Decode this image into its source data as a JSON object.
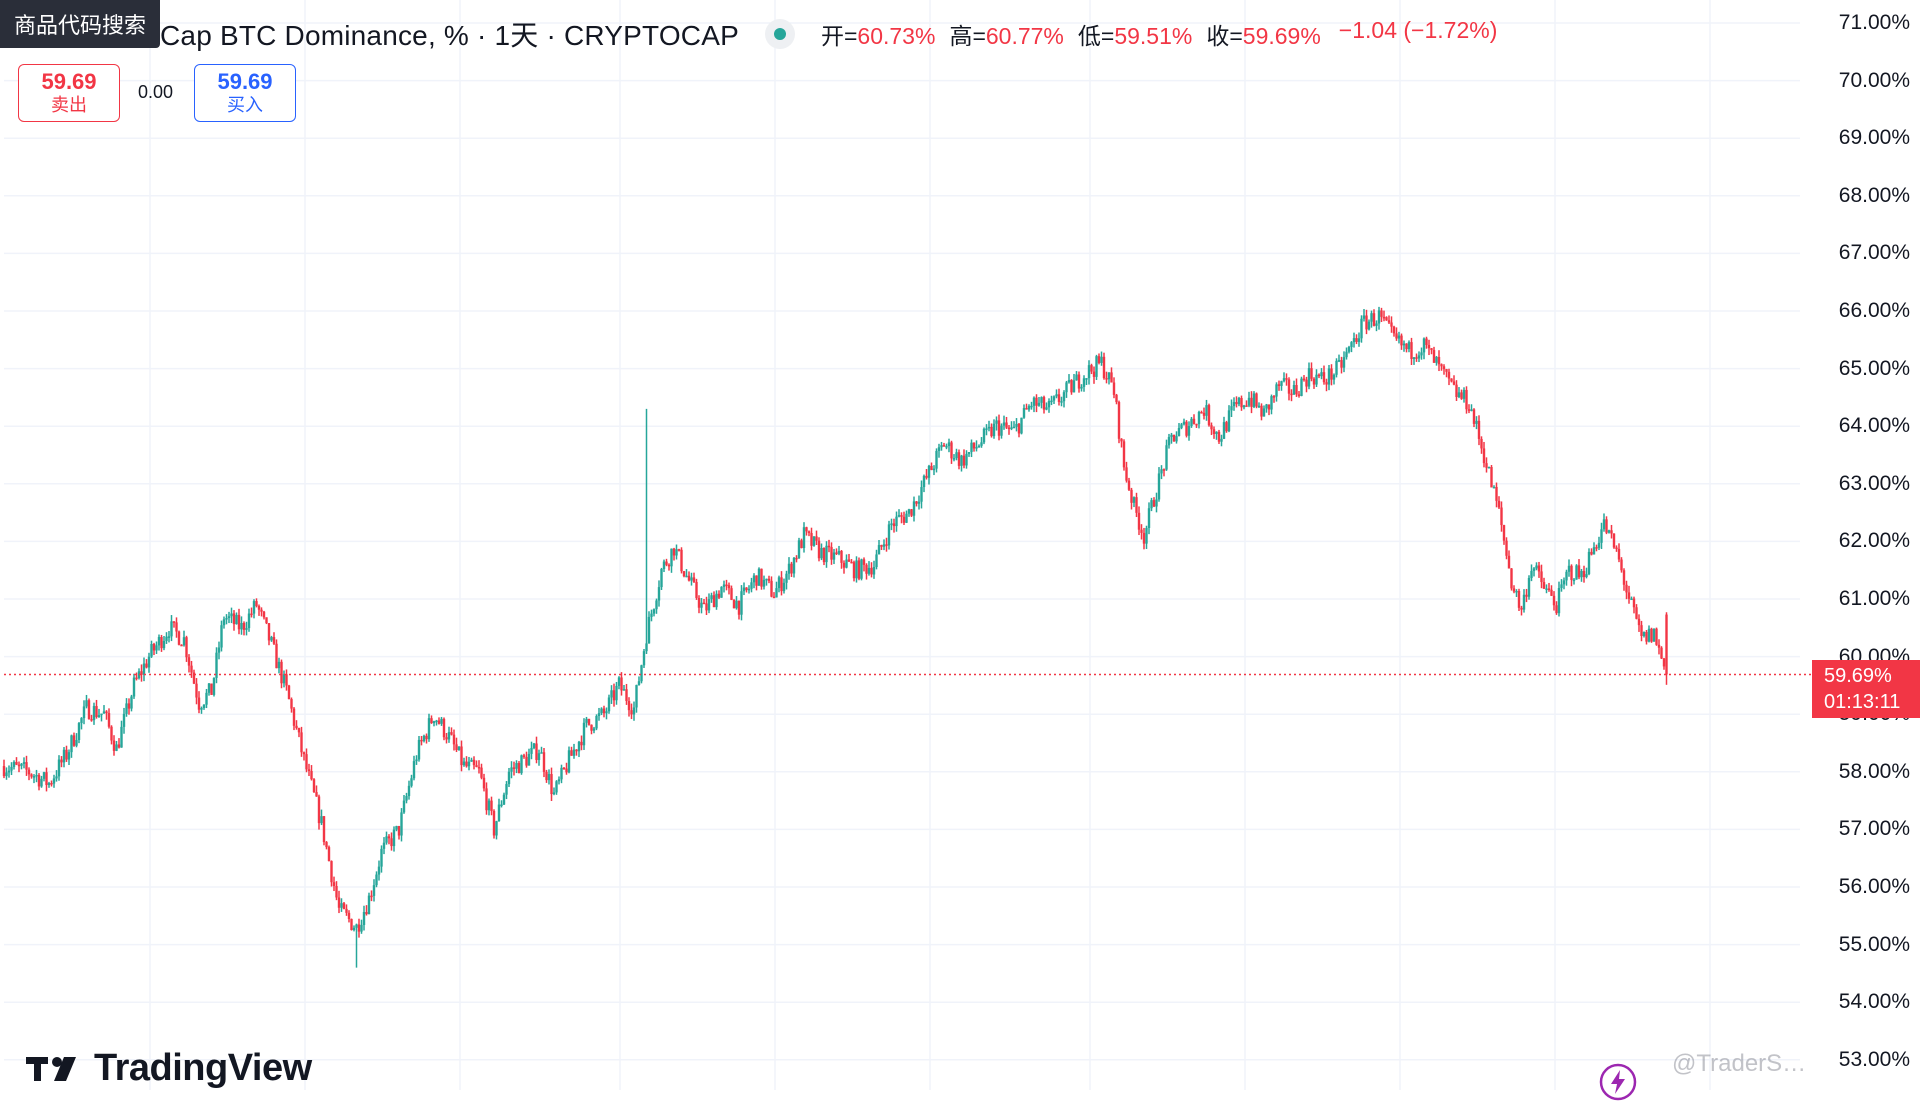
{
  "header": {
    "symbol_title": "Cap BTC Dominance, % · 1天 · CRYPTOCAP",
    "ohlc": [
      {
        "label": "开=",
        "value": "60.73%"
      },
      {
        "label": "高=",
        "value": "60.77%"
      },
      {
        "label": "低=",
        "value": "59.51%"
      },
      {
        "label": "收=",
        "value": "59.69%"
      }
    ],
    "change": "−1.04 (−1.72%)"
  },
  "search_tooltip": "商品代码搜索",
  "trade": {
    "sell_price": "59.69",
    "sell_label": "卖出",
    "spread": "0.00",
    "buy_price": "59.69",
    "buy_label": "买入"
  },
  "price_tag": {
    "value": "59.69%",
    "countdown": "01:13:11"
  },
  "logo": {
    "wordmark": "TradingView",
    "icon": "tradingview-logo-icon"
  },
  "watermark": "@TraderS…",
  "colors": {
    "up": "#26a69a",
    "down": "#f23645",
    "grid": "#f0f3fa",
    "accent": "#2962ff"
  },
  "chart_data": {
    "type": "candlestick",
    "title": "",
    "xlabel": "",
    "ylabel": "",
    "ylim": [
      53.0,
      71.2
    ],
    "y_ticks": [
      "71.00%",
      "70.00%",
      "69.00%",
      "68.00%",
      "67.00%",
      "66.00%",
      "65.00%",
      "64.00%",
      "63.00%",
      "62.00%",
      "61.00%",
      "60.00%",
      "59.00%",
      "58.00%",
      "57.00%",
      "56.00%",
      "55.00%",
      "54.00%",
      "53.00%"
    ],
    "last_price": 59.69,
    "grid": true,
    "close_path": [
      [
        0,
        58.1
      ],
      [
        10,
        58.0
      ],
      [
        18,
        57.8
      ],
      [
        25,
        58.3
      ],
      [
        33,
        59.1
      ],
      [
        40,
        59.0
      ],
      [
        45,
        58.4
      ],
      [
        52,
        59.5
      ],
      [
        58,
        60.0
      ],
      [
        66,
        60.5
      ],
      [
        72,
        60.3
      ],
      [
        78,
        59.2
      ],
      [
        83,
        59.4
      ],
      [
        88,
        60.7
      ],
      [
        95,
        60.5
      ],
      [
        101,
        60.9
      ],
      [
        107,
        60.2
      ],
      [
        113,
        59.4
      ],
      [
        120,
        58.2
      ],
      [
        127,
        57.1
      ],
      [
        134,
        55.6
      ],
      [
        141,
        55.3
      ],
      [
        146,
        55.8
      ],
      [
        151,
        56.6
      ],
      [
        158,
        57.0
      ],
      [
        165,
        58.3
      ],
      [
        172,
        59.0
      ],
      [
        178,
        58.6
      ],
      [
        184,
        58.1
      ],
      [
        190,
        58.0
      ],
      [
        196,
        57.0
      ],
      [
        202,
        58.0
      ],
      [
        208,
        58.2
      ],
      [
        214,
        58.4
      ],
      [
        220,
        57.6
      ],
      [
        226,
        58.2
      ],
      [
        233,
        58.8
      ],
      [
        240,
        59.0
      ],
      [
        246,
        59.5
      ],
      [
        252,
        59.1
      ],
      [
        257,
        60.4
      ],
      [
        263,
        61.5
      ],
      [
        268,
        61.9
      ],
      [
        273,
        61.4
      ],
      [
        280,
        60.8
      ],
      [
        287,
        61.2
      ],
      [
        294,
        60.9
      ],
      [
        301,
        61.4
      ],
      [
        308,
        61.1
      ],
      [
        314,
        61.5
      ],
      [
        320,
        62.1
      ],
      [
        327,
        61.8
      ],
      [
        334,
        61.7
      ],
      [
        341,
        61.5
      ],
      [
        348,
        61.6
      ],
      [
        355,
        62.3
      ],
      [
        362,
        62.5
      ],
      [
        369,
        63.1
      ],
      [
        376,
        63.7
      ],
      [
        383,
        63.4
      ],
      [
        390,
        63.7
      ],
      [
        397,
        64.0
      ],
      [
        404,
        63.9
      ],
      [
        411,
        64.4
      ],
      [
        418,
        64.3
      ],
      [
        425,
        64.6
      ],
      [
        432,
        64.9
      ],
      [
        439,
        65.1
      ],
      [
        444,
        64.6
      ],
      [
        448,
        63.3
      ],
      [
        452,
        62.6
      ],
      [
        456,
        62.1
      ],
      [
        461,
        62.9
      ],
      [
        467,
        63.8
      ],
      [
        473,
        64.0
      ],
      [
        480,
        64.3
      ],
      [
        486,
        63.8
      ],
      [
        492,
        64.3
      ],
      [
        498,
        64.5
      ],
      [
        504,
        64.2
      ],
      [
        510,
        64.7
      ],
      [
        516,
        64.6
      ],
      [
        522,
        64.9
      ],
      [
        528,
        64.8
      ],
      [
        534,
        65.0
      ],
      [
        539,
        65.4
      ],
      [
        544,
        65.8
      ],
      [
        550,
        65.9
      ],
      [
        556,
        65.5
      ],
      [
        562,
        65.3
      ],
      [
        568,
        65.4
      ],
      [
        574,
        65.0
      ],
      [
        580,
        64.6
      ],
      [
        586,
        64.4
      ],
      [
        592,
        63.5
      ],
      [
        598,
        62.5
      ],
      [
        603,
        61.3
      ],
      [
        607,
        60.8
      ],
      [
        611,
        61.6
      ],
      [
        616,
        61.2
      ],
      [
        621,
        60.9
      ],
      [
        626,
        61.5
      ],
      [
        631,
        61.4
      ],
      [
        635,
        61.8
      ],
      [
        640,
        62.3
      ],
      [
        645,
        61.8
      ],
      [
        650,
        61.0
      ],
      [
        655,
        60.3
      ],
      [
        660,
        60.4
      ],
      [
        665,
        59.69
      ]
    ],
    "volatility": {
      "tall_wick_up_at": 257,
      "wick_high": 64.3,
      "wick_low_at": 141,
      "wick_low": 54.6
    }
  }
}
